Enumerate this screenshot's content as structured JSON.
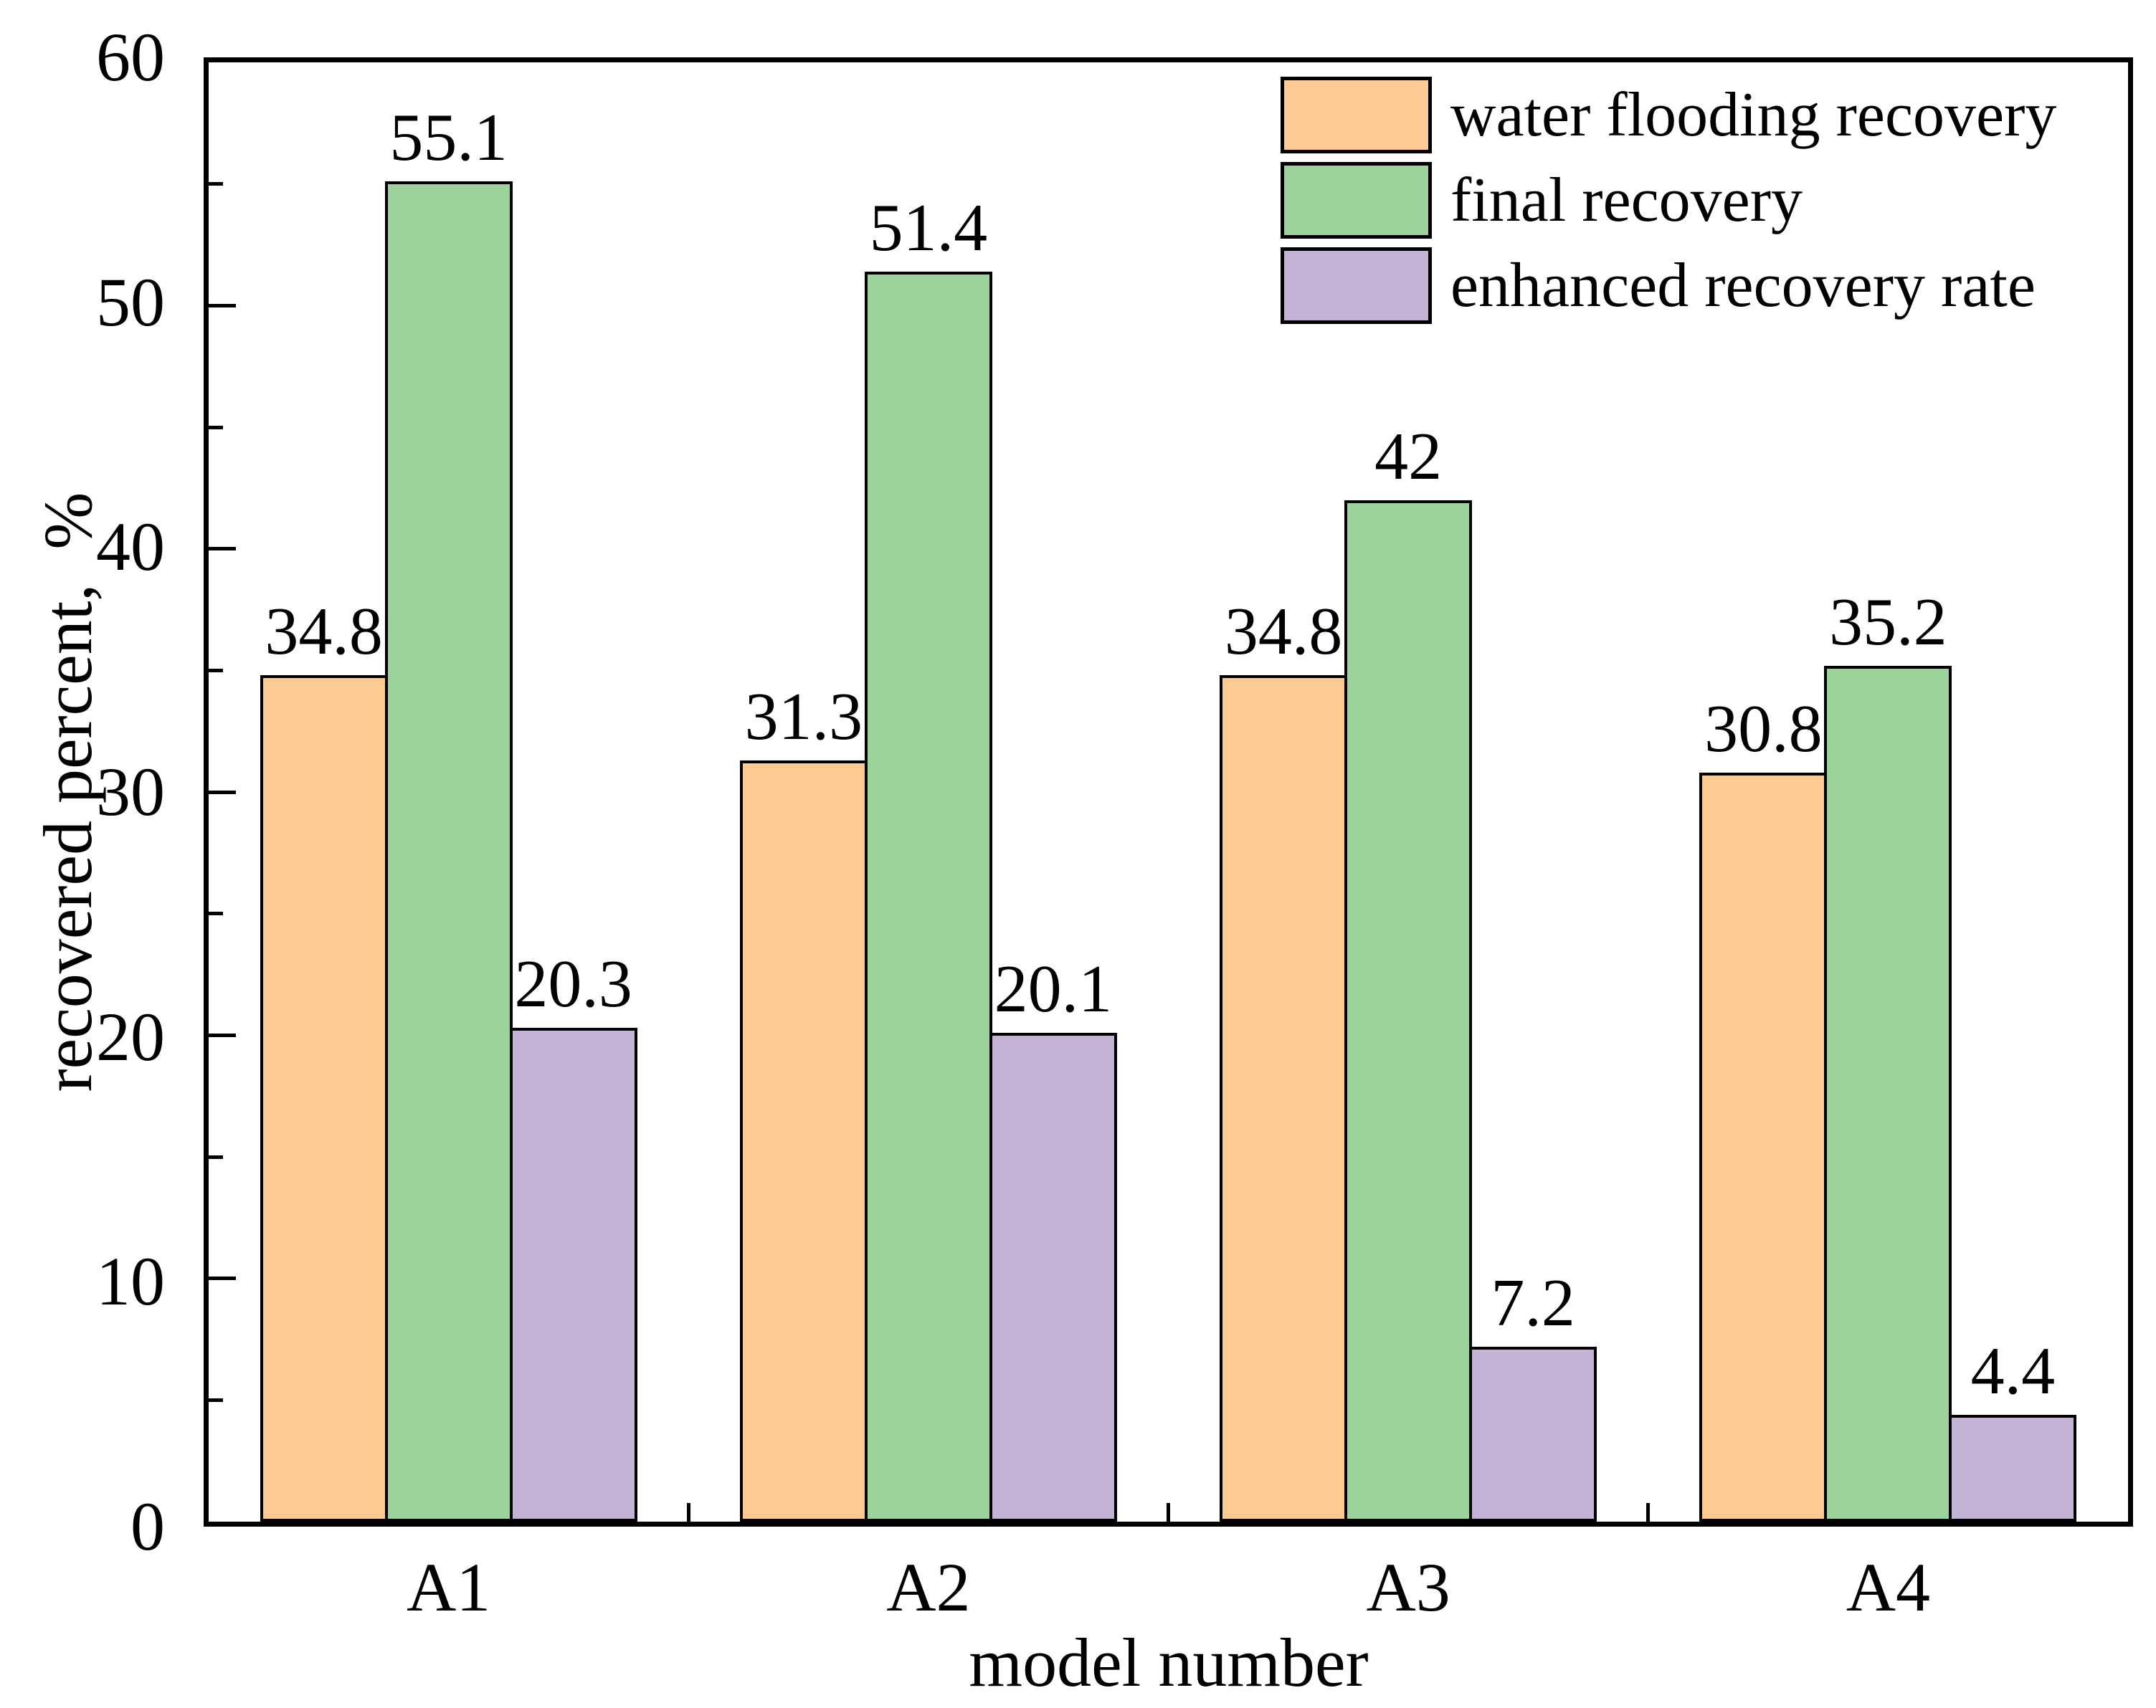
{
  "figure": {
    "background": "#FFFFFF",
    "axis_color": "#000000"
  },
  "chart_data": {
    "type": "bar",
    "title": "",
    "categories": [
      "A1",
      "A2",
      "A3",
      "A4"
    ],
    "series": [
      {
        "name": "water flooding recovery",
        "color": "#FDCA92",
        "values": [
          34.8,
          31.3,
          34.8,
          30.8
        ],
        "value_labels": [
          "34.8",
          "31.3",
          "34.8",
          "30.8"
        ]
      },
      {
        "name": "final recovery",
        "color": "#9CD39A",
        "values": [
          55.1,
          51.4,
          42,
          35.2
        ],
        "value_labels": [
          "55.1",
          "51.4",
          "42",
          "35.2"
        ]
      },
      {
        "name": "enhanced recovery rate",
        "color": "#C5B3D6",
        "values": [
          20.3,
          20.1,
          7.2,
          4.4
        ],
        "value_labels": [
          "20.3",
          "20.1",
          "7.2",
          "4.4"
        ]
      }
    ],
    "xlabel": "model number",
    "ylabel": "recovered percent,  %",
    "ylim": [
      0,
      60
    ],
    "y_major_ticks": [
      0,
      10,
      20,
      30,
      40,
      50,
      60
    ],
    "y_major_tick_labels": [
      "0",
      "10",
      "20",
      "30",
      "40",
      "50",
      "60"
    ],
    "y_minor_step": 5,
    "grid": false,
    "legend_position": "top-right-inside",
    "bar_edge_color": "#000000"
  }
}
